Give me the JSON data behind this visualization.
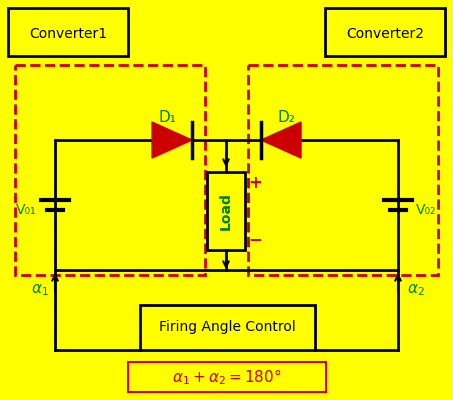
{
  "bg_color": "#FFFF00",
  "converter1_label": "Converter1",
  "converter2_label": "Converter2",
  "d1_label": "D₁",
  "d2_label": "D₂",
  "load_label": "Load",
  "vo1_label": "V₀₁",
  "vo2_label": "V₀₂",
  "alpha1_label": "α₁",
  "alpha2_label": "α₂",
  "firing_label": "Firing Angle Control",
  "green_color": "#008000",
  "red_color": "#CC0000",
  "black_color": "#000000",
  "fig_w": 4.53,
  "fig_h": 4.0,
  "dpi": 100
}
